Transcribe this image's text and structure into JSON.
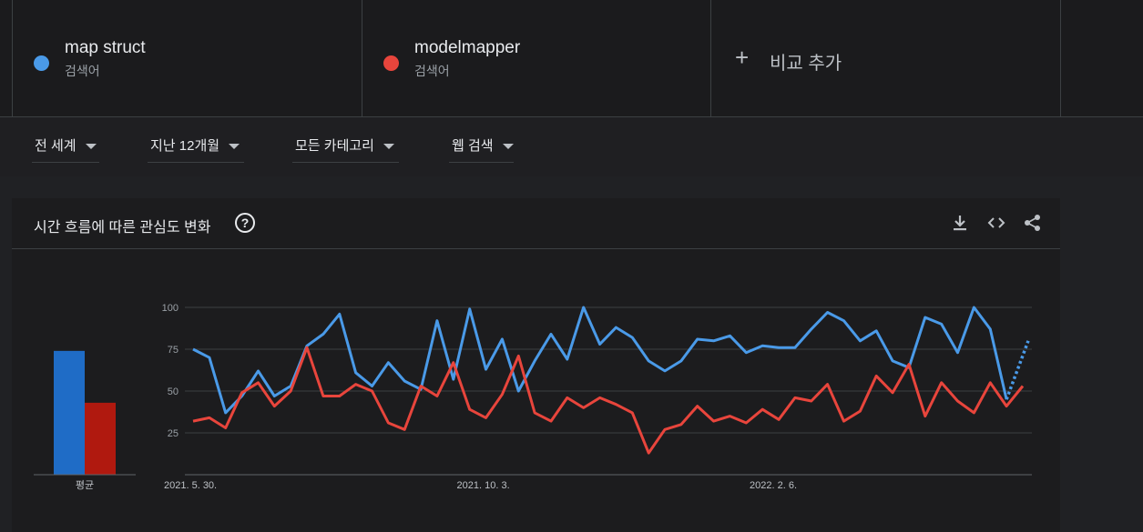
{
  "terms": [
    {
      "name": "map struct",
      "subtitle": "검색어",
      "color": "#4285f4"
    },
    {
      "name": "modelmapper",
      "subtitle": "검색어",
      "color": "#ea4335"
    }
  ],
  "add_compare": {
    "icon": "plus-icon",
    "label": "비교 추가"
  },
  "filters": [
    {
      "label": "전 세계"
    },
    {
      "label": "지난 12개월"
    },
    {
      "label": "모든 카테고리"
    },
    {
      "label": "웹 검색"
    }
  ],
  "card": {
    "title": "시간 흐름에 따른 관심도 변화",
    "help_icon": "help-circle-icon",
    "actions": [
      "download-icon",
      "embed-code-icon",
      "share-icon"
    ]
  },
  "chart_data": {
    "type": "line",
    "ylim": [
      0,
      100
    ],
    "y_ticks": [
      25,
      50,
      75,
      100
    ],
    "x_tick_labels": [
      {
        "index": 0,
        "label": "2021. 5. 30."
      },
      {
        "index": 18,
        "label": "2021. 10. 3."
      },
      {
        "index": 36,
        "label": "2022. 2. 6."
      }
    ],
    "series": [
      {
        "name": "map struct",
        "color": "#4a9ae8",
        "values": [
          75,
          70,
          37,
          47,
          62,
          47,
          53,
          77,
          84,
          96,
          61,
          53,
          67,
          56,
          51,
          92,
          57,
          99,
          63,
          81,
          50,
          68,
          84,
          69,
          100,
          78,
          88,
          82,
          68,
          62,
          68,
          81,
          80,
          83,
          73,
          77,
          76,
          76,
          87,
          97,
          92,
          80,
          86,
          68,
          64,
          94,
          90,
          73,
          100,
          87,
          45
        ],
        "partial_from_index": 50,
        "partial_value": 80
      },
      {
        "name": "modelmapper",
        "color": "#e8453c",
        "values": [
          32,
          34,
          28,
          49,
          55,
          41,
          50,
          76,
          47,
          47,
          54,
          50,
          31,
          27,
          53,
          47,
          67,
          39,
          34,
          48,
          71,
          37,
          32,
          46,
          40,
          46,
          42,
          37,
          13,
          27,
          30,
          41,
          32,
          35,
          31,
          39,
          33,
          46,
          44,
          54,
          32,
          38,
          59,
          49,
          66,
          35,
          55,
          44,
          37,
          55,
          41,
          53
        ]
      }
    ],
    "average": {
      "label": "평균",
      "bars": [
        {
          "name": "map struct",
          "value": 74,
          "color": "#1f6cc6"
        },
        {
          "name": "modelmapper",
          "value": 43,
          "color": "#b0190f"
        }
      ]
    }
  }
}
